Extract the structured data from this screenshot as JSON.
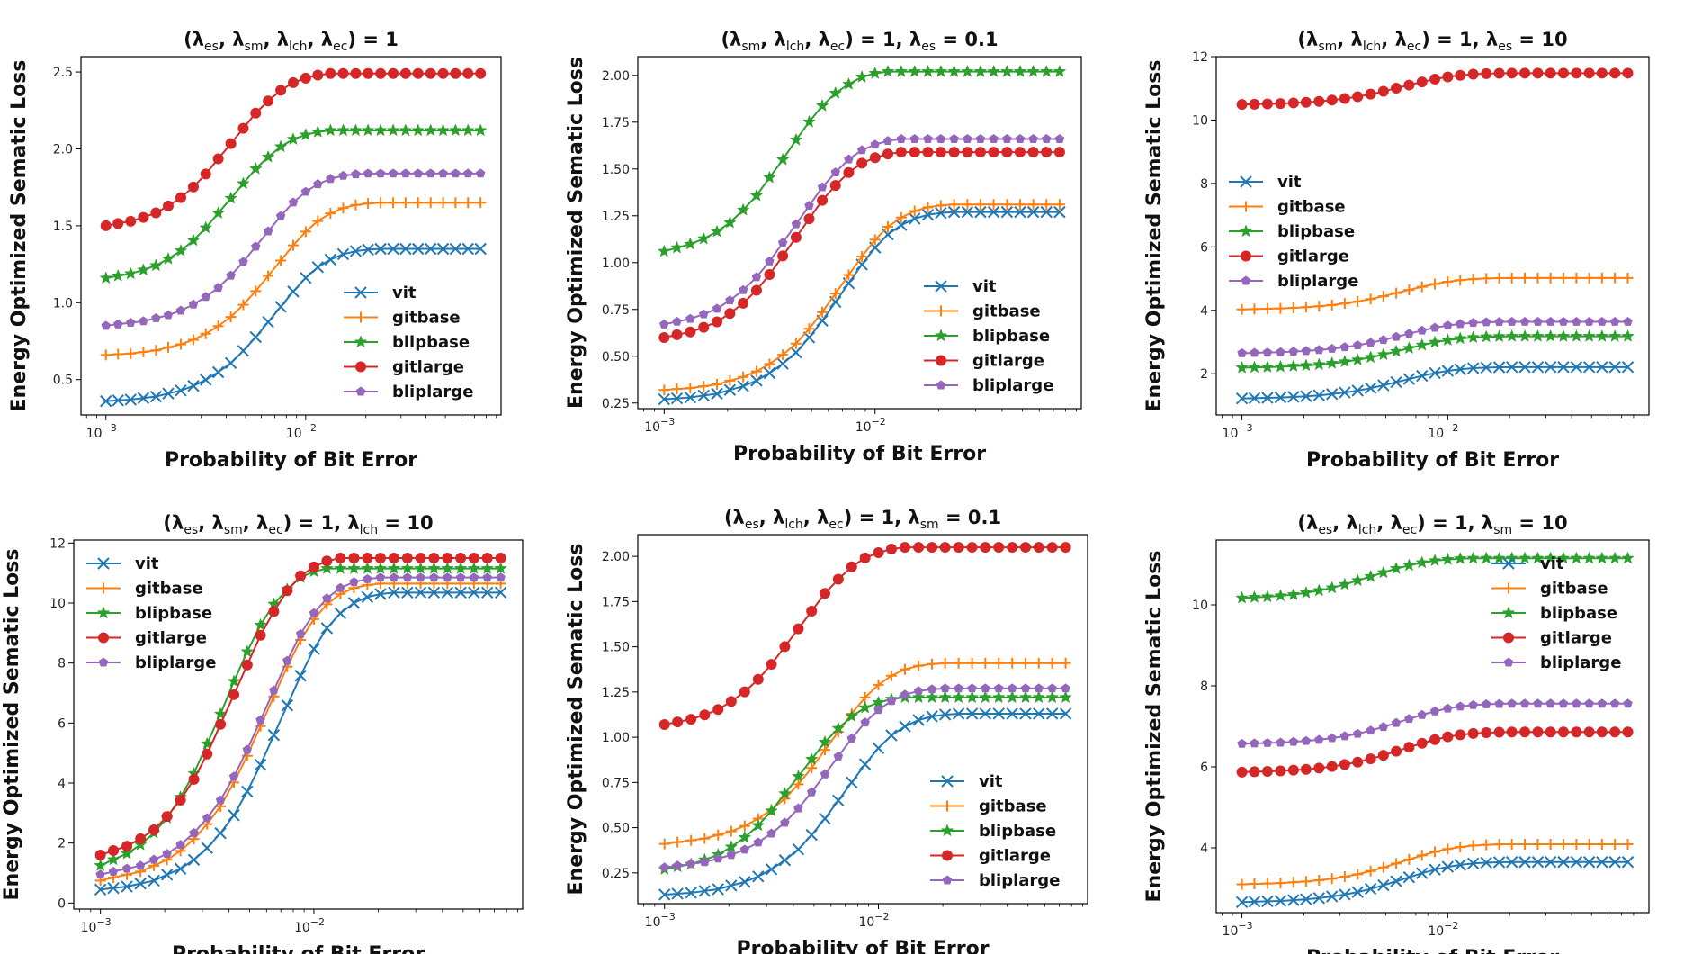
{
  "colors": {
    "vit": "#1f77b4",
    "gitbase": "#ff7f0e",
    "blipbase": "#2ca02c",
    "gitlarge": "#d62728",
    "bliplarge": "#9467bd"
  },
  "markers": {
    "vit": "x",
    "gitbase": "plus",
    "blipbase": "star",
    "gitlarge": "circle",
    "bliplarge": "pentagon"
  },
  "chart_data": [
    {
      "type": "line",
      "title_parts": [
        "(λ",
        "es",
        ", λ",
        "sm",
        ", λ",
        "lch",
        ", λ",
        "ec",
        ") = 1"
      ],
      "xlabel": "Probability of Bit Error",
      "ylabel": "Energy Optimized Sematic Loss",
      "xscale": "log",
      "xlim": [
        0.00075,
        0.095
      ],
      "ylim": [
        0.27,
        2.6
      ],
      "yticks": [
        0.5,
        1.0,
        1.5,
        2.0,
        2.5
      ],
      "ytick_labels": [
        "0.5",
        "1.0",
        "1.5",
        "2.0",
        "2.5"
      ],
      "xticks": [
        0.001,
        0.01
      ],
      "xtick_labels": [
        [
          "10",
          "−3"
        ],
        [
          "10",
          "−2"
        ]
      ],
      "legend": "lower-right",
      "series": [
        {
          "name": "vit",
          "y0": 0.36,
          "y1": 1.35
        },
        {
          "name": "gitbase",
          "y0": 0.66,
          "y1": 1.65
        },
        {
          "name": "blipbase",
          "y0": 1.16,
          "y1": 2.12
        },
        {
          "name": "gitlarge",
          "y0": 1.5,
          "y1": 2.49
        },
        {
          "name": "bliplarge",
          "y0": 0.85,
          "y1": 1.84
        }
      ]
    },
    {
      "type": "line",
      "title_parts": [
        "(λ",
        "sm",
        ", λ",
        "lch",
        ", λ",
        "ec",
        ") = 1, λ",
        "es",
        " = 0.1"
      ],
      "xlabel": "Probability of Bit Error",
      "ylabel": "Energy Optimized Sematic Loss",
      "xscale": "log",
      "xlim": [
        0.00075,
        0.095
      ],
      "ylim": [
        0.22,
        2.1
      ],
      "yticks": [
        0.25,
        0.5,
        0.75,
        1.0,
        1.25,
        1.5,
        1.75,
        2.0
      ],
      "ytick_labels": [
        "0.25",
        "0.50",
        "0.75",
        "1.00",
        "1.25",
        "1.50",
        "1.75",
        "2.00"
      ],
      "xticks": [
        0.001,
        0.01
      ],
      "xtick_labels": [
        [
          "10",
          "−3"
        ],
        [
          "10",
          "−2"
        ]
      ],
      "legend": "lower-right",
      "series": [
        {
          "name": "vit",
          "y0": 0.27,
          "y1": 1.27
        },
        {
          "name": "gitbase",
          "y0": 0.32,
          "y1": 1.31
        },
        {
          "name": "blipbase",
          "y0": 1.06,
          "y1": 2.02
        },
        {
          "name": "gitlarge",
          "y0": 0.6,
          "y1": 1.59
        },
        {
          "name": "bliplarge",
          "y0": 0.67,
          "y1": 1.66
        }
      ]
    },
    {
      "type": "line",
      "title_parts": [
        "(λ",
        "sm",
        ", λ",
        "lch",
        ", λ",
        "ec",
        ") = 1, λ",
        "es",
        " = 10"
      ],
      "xlabel": "Probability of Bit Error",
      "ylabel": "Energy Optimized Sematic Loss",
      "xscale": "log",
      "xlim": [
        0.00075,
        0.095
      ],
      "ylim": [
        0.7,
        12.0
      ],
      "yticks": [
        2,
        4,
        6,
        8,
        10,
        12
      ],
      "ytick_labels": [
        "2",
        "4",
        "6",
        "8",
        "10",
        "12"
      ],
      "xticks": [
        0.001,
        0.01
      ],
      "xtick_labels": [
        [
          "10",
          "−3"
        ],
        [
          "10",
          "−2"
        ]
      ],
      "legend": "center-left",
      "series": [
        {
          "name": "vit",
          "y0": 1.22,
          "y1": 2.21
        },
        {
          "name": "gitbase",
          "y0": 4.03,
          "y1": 5.02
        },
        {
          "name": "blipbase",
          "y0": 2.19,
          "y1": 3.18
        },
        {
          "name": "gitlarge",
          "y0": 10.49,
          "y1": 11.48
        },
        {
          "name": "bliplarge",
          "y0": 2.65,
          "y1": 3.64
        }
      ]
    },
    {
      "type": "line",
      "title_parts": [
        "(λ",
        "es",
        ", λ",
        "sm",
        ", λ",
        "ec",
        ") = 1, λ",
        "lch",
        " = 10"
      ],
      "xlabel": "Probability of Bit Error",
      "ylabel": "Energy Optimized Sematic Loss",
      "xscale": "log",
      "xlim": [
        0.00075,
        0.095
      ],
      "ylim": [
        -0.2,
        12.1
      ],
      "yticks": [
        0,
        2,
        4,
        6,
        8,
        10,
        12
      ],
      "ytick_labels": [
        "0",
        "2",
        "4",
        "6",
        "8",
        "10",
        "12"
      ],
      "xticks": [
        0.001,
        0.01
      ],
      "xtick_labels": [
        [
          "10",
          "−3"
        ],
        [
          "10",
          "−2"
        ]
      ],
      "legend": "upper-left",
      "series": [
        {
          "name": "vit",
          "y0": 0.45,
          "y1": 10.35
        },
        {
          "name": "gitbase",
          "y0": 0.75,
          "y1": 10.65
        },
        {
          "name": "blipbase",
          "y0": 1.25,
          "y1": 11.15
        },
        {
          "name": "gitlarge",
          "y0": 1.6,
          "y1": 11.5
        },
        {
          "name": "bliplarge",
          "y0": 0.95,
          "y1": 10.85
        }
      ]
    },
    {
      "type": "line",
      "title_parts": [
        "(λ",
        "es",
        ", λ",
        "lch",
        ", λ",
        "ec",
        ") = 1, λ",
        "sm",
        " = 0.1"
      ],
      "xlabel": "Probability of Bit Error",
      "ylabel": "Energy Optimized Sematic Loss",
      "xscale": "log",
      "xlim": [
        0.00075,
        0.095
      ],
      "ylim": [
        0.08,
        2.12
      ],
      "yticks": [
        0.25,
        0.5,
        0.75,
        1.0,
        1.25,
        1.5,
        1.75,
        2.0
      ],
      "ytick_labels": [
        "0.25",
        "0.50",
        "0.75",
        "1.00",
        "1.25",
        "1.50",
        "1.75",
        "2.00"
      ],
      "xticks": [
        0.001,
        0.01
      ],
      "xtick_labels": [
        [
          "10",
          "−3"
        ],
        [
          "10",
          "−2"
        ]
      ],
      "legend": "lower-right",
      "series": [
        {
          "name": "vit",
          "y0": 0.13,
          "y1": 1.13
        },
        {
          "name": "gitbase",
          "y0": 0.41,
          "y1": 1.41
        },
        {
          "name": "blipbase",
          "y0": 0.27,
          "y1": 1.22
        },
        {
          "name": "gitlarge",
          "y0": 1.07,
          "y1": 2.05
        },
        {
          "name": "bliplarge",
          "y0": 0.28,
          "y1": 1.27
        }
      ]
    },
    {
      "type": "line",
      "title_parts": [
        "(λ",
        "es",
        ", λ",
        "lch",
        ", λ",
        "ec",
        ") = 1, λ",
        "sm",
        " = 10"
      ],
      "xlabel": "Probability of Bit Error",
      "ylabel": "Energy Optimized Sematic Loss",
      "xscale": "log",
      "xlim": [
        0.00075,
        0.095
      ],
      "ylim": [
        2.4,
        11.6
      ],
      "yticks": [
        4,
        6,
        8,
        10
      ],
      "ytick_labels": [
        "4",
        "6",
        "8",
        "10"
      ],
      "xticks": [
        0.001,
        0.01
      ],
      "xtick_labels": [
        [
          "10",
          "−3"
        ],
        [
          "10",
          "−2"
        ]
      ],
      "legend": "upper-right",
      "series": [
        {
          "name": "vit",
          "y0": 2.66,
          "y1": 3.65
        },
        {
          "name": "gitbase",
          "y0": 3.1,
          "y1": 4.09
        },
        {
          "name": "blipbase",
          "y0": 10.17,
          "y1": 11.15
        },
        {
          "name": "gitlarge",
          "y0": 5.87,
          "y1": 6.86
        },
        {
          "name": "bliplarge",
          "y0": 6.57,
          "y1": 7.56
        }
      ]
    }
  ],
  "curve_shape": {
    "x_points": [
      0.001,
      0.00115,
      0.00133,
      0.00154,
      0.00178,
      0.00205,
      0.00237,
      0.00274,
      0.00316,
      0.00365,
      0.00422,
      0.00487,
      0.00562,
      0.00649,
      0.0075,
      0.00866,
      0.01,
      0.0115,
      0.0133,
      0.0154,
      0.0178,
      0.0205,
      0.0237,
      0.0274,
      0.0316,
      0.0365,
      0.0422,
      0.0487,
      0.0562,
      0.0649,
      0.075
    ],
    "profiles": [
      [
        0.0,
        0.005,
        0.01,
        0.02,
        0.03,
        0.05,
        0.07,
        0.1,
        0.14,
        0.19,
        0.25,
        0.33,
        0.42,
        0.52,
        0.62,
        0.72,
        0.81,
        0.88,
        0.93,
        0.965,
        0.985,
        0.995,
        1.0,
        1.0,
        1.0,
        1.0,
        1.0,
        1.0,
        1.0,
        1.0,
        1.0
      ],
      [
        0.0,
        0.01,
        0.02,
        0.03,
        0.05,
        0.07,
        0.1,
        0.14,
        0.19,
        0.25,
        0.33,
        0.42,
        0.52,
        0.62,
        0.72,
        0.81,
        0.88,
        0.93,
        0.965,
        0.985,
        0.995,
        1.0,
        1.0,
        1.0,
        1.0,
        1.0,
        1.0,
        1.0,
        1.0,
        1.0,
        1.0
      ],
      [
        0.0,
        0.02,
        0.04,
        0.07,
        0.11,
        0.16,
        0.23,
        0.31,
        0.41,
        0.51,
        0.62,
        0.72,
        0.81,
        0.88,
        0.93,
        0.97,
        0.99,
        1.0,
        1.0,
        1.0,
        1.0,
        1.0,
        1.0,
        1.0,
        1.0,
        1.0,
        1.0,
        1.0,
        1.0,
        1.0,
        1.0
      ],
      [
        0.0,
        0.015,
        0.03,
        0.055,
        0.085,
        0.13,
        0.185,
        0.255,
        0.34,
        0.44,
        0.54,
        0.64,
        0.74,
        0.82,
        0.89,
        0.94,
        0.97,
        0.99,
        1.0,
        1.0,
        1.0,
        1.0,
        1.0,
        1.0,
        1.0,
        1.0,
        1.0,
        1.0,
        1.0,
        1.0,
        1.0
      ]
    ],
    "profile_by_panel": [
      {
        "vit": 0,
        "gitbase": 0,
        "blipbase": 3,
        "gitlarge": 3,
        "bliplarge": 1
      },
      {
        "vit": 0,
        "gitbase": 0,
        "blipbase": 2,
        "gitlarge": 3,
        "bliplarge": 3
      },
      {
        "vit": 1,
        "gitbase": 1,
        "blipbase": 1,
        "gitlarge": 1,
        "bliplarge": 1
      },
      {
        "vit": 0,
        "gitbase": 1,
        "blipbase": 2,
        "gitlarge": 3,
        "bliplarge": 1
      },
      {
        "vit": 0,
        "gitbase": 1,
        "blipbase": 3,
        "gitlarge": 3,
        "bliplarge": 1
      },
      {
        "vit": 1,
        "gitbase": 1,
        "blipbase": 3,
        "gitlarge": 1,
        "bliplarge": 1
      }
    ]
  }
}
